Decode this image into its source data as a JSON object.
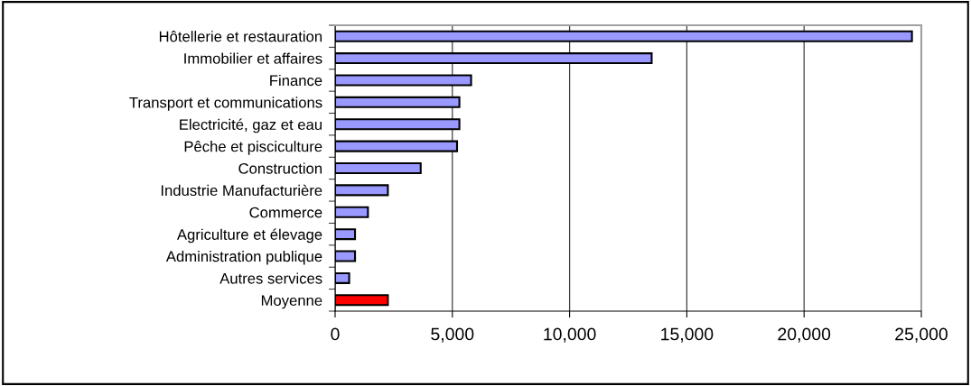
{
  "chart_data": {
    "type": "bar",
    "orientation": "horizontal",
    "categories": [
      "Hôtellerie et restauration",
      "Immobilier et affaires",
      "Finance",
      "Transport et communications",
      "Electricité, gaz et eau",
      "Pêche et pisciculture",
      "Construction",
      "Industrie Manufacturière",
      "Commerce",
      "Agriculture et élevage",
      "Administration publique",
      "Autres services",
      "Moyenne"
    ],
    "values": [
      24600,
      13500,
      5800,
      5300,
      5300,
      5200,
      3650,
      2250,
      1400,
      850,
      850,
      600,
      2250
    ],
    "colors": [
      "#9999ff",
      "#9999ff",
      "#9999ff",
      "#9999ff",
      "#9999ff",
      "#9999ff",
      "#9999ff",
      "#9999ff",
      "#9999ff",
      "#9999ff",
      "#9999ff",
      "#9999ff",
      "#ff0000"
    ],
    "xlim": [
      0,
      25000
    ],
    "xticks": [
      {
        "value": 0,
        "label": "0"
      },
      {
        "value": 5000,
        "label": "5,000"
      },
      {
        "value": 10000,
        "label": "10,000"
      },
      {
        "value": 15000,
        "label": "15,000"
      },
      {
        "value": 20000,
        "label": "20,000"
      },
      {
        "value": 25000,
        "label": "25,000"
      }
    ],
    "grid": "x"
  }
}
